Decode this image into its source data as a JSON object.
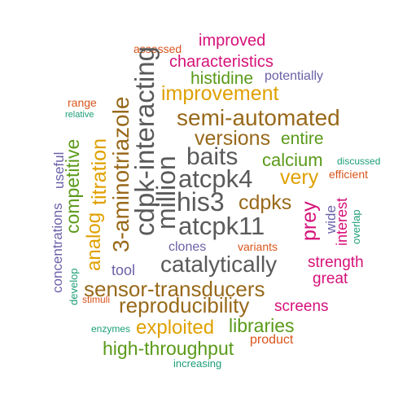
{
  "colors": {
    "gray": "#5a5a5a",
    "brown": "#98691a",
    "gold": "#e0a000",
    "green": "#5a9a1a",
    "magenta": "#d6127a",
    "orange": "#d9551c",
    "purple": "#6a61a8",
    "teal": "#1b9e77"
  },
  "words": [
    {
      "text": "improved",
      "color": "magenta"
    },
    {
      "text": "assessed",
      "color": "orange"
    },
    {
      "text": "characteristics",
      "color": "magenta"
    },
    {
      "text": "histidine",
      "color": "green"
    },
    {
      "text": "potentially",
      "color": "purple"
    },
    {
      "text": "improvement",
      "color": "gold"
    },
    {
      "text": "range",
      "color": "orange"
    },
    {
      "text": "relative",
      "color": "teal"
    },
    {
      "text": "semi-automated",
      "color": "brown"
    },
    {
      "text": "versions",
      "color": "brown"
    },
    {
      "text": "entire",
      "color": "green"
    },
    {
      "text": "baits",
      "color": "gray"
    },
    {
      "text": "calcium",
      "color": "green"
    },
    {
      "text": "discussed",
      "color": "teal"
    },
    {
      "text": "atcpk4",
      "color": "gray"
    },
    {
      "text": "very",
      "color": "gold"
    },
    {
      "text": "efficient",
      "color": "orange"
    },
    {
      "text": "his3",
      "color": "gray"
    },
    {
      "text": "cdpks",
      "color": "brown"
    },
    {
      "text": "atcpk11",
      "color": "gray"
    },
    {
      "text": "clones",
      "color": "purple"
    },
    {
      "text": "variants",
      "color": "orange"
    },
    {
      "text": "catalytically",
      "color": "gray"
    },
    {
      "text": "strength",
      "color": "magenta"
    },
    {
      "text": "tool",
      "color": "purple"
    },
    {
      "text": "great",
      "color": "magenta"
    },
    {
      "text": "sensor-transducers",
      "color": "brown"
    },
    {
      "text": "stimuli",
      "color": "orange"
    },
    {
      "text": "reproducibility",
      "color": "brown"
    },
    {
      "text": "screens",
      "color": "magenta"
    },
    {
      "text": "enzymes",
      "color": "teal"
    },
    {
      "text": "exploited",
      "color": "gold"
    },
    {
      "text": "libraries",
      "color": "green"
    },
    {
      "text": "product",
      "color": "orange"
    },
    {
      "text": "high-throughput",
      "color": "green"
    },
    {
      "text": "increasing",
      "color": "teal"
    },
    {
      "text": "cdpk-interacting",
      "color": "gray"
    },
    {
      "text": "3-aminotriazole",
      "color": "brown"
    },
    {
      "text": "million",
      "color": "gray"
    },
    {
      "text": "titration",
      "color": "gold"
    },
    {
      "text": "competitive",
      "color": "green"
    },
    {
      "text": "analog",
      "color": "gold"
    },
    {
      "text": "useful",
      "color": "purple"
    },
    {
      "text": "concentrations",
      "color": "purple"
    },
    {
      "text": "develop",
      "color": "teal"
    },
    {
      "text": "prey",
      "color": "magenta"
    },
    {
      "text": "wide",
      "color": "purple"
    },
    {
      "text": "interest",
      "color": "magenta"
    },
    {
      "text": "overlap",
      "color": "teal"
    }
  ]
}
